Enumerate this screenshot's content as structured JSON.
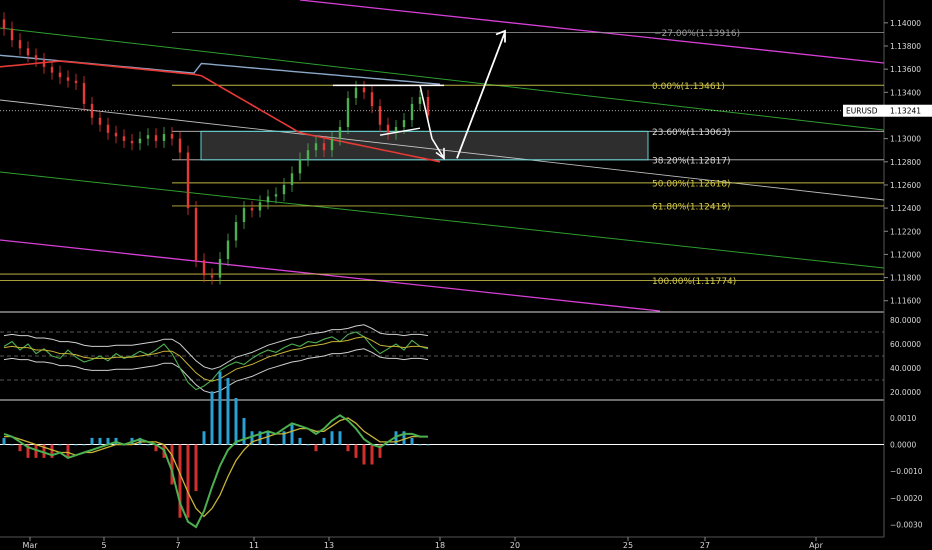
{
  "chart_data": {
    "type": "candlestick",
    "symbol": "EURUSD",
    "current_price": "1.13241",
    "x_ticks": [
      "Mar",
      "5",
      "7",
      "11",
      "13",
      "18",
      "20",
      "25",
      "27",
      "Apr"
    ],
    "price_axis": {
      "ticks": [
        "1.14000",
        "1.13800",
        "1.13600",
        "1.13400",
        "1.13000",
        "1.12800",
        "1.12600",
        "1.12400",
        "1.12200",
        "1.12000",
        "1.11800",
        "1.11600"
      ],
      "ylim": [
        1.1152,
        1.1418
      ]
    },
    "fibonacci": [
      {
        "label": "−27.00%(1.13916)",
        "level": 1.13916,
        "color": "#9a9a9a"
      },
      {
        "label": "0.00%(1.13461)",
        "level": 1.13461,
        "color": "#d4c94a"
      },
      {
        "label": "23.60%(1.13063)",
        "level": 1.13063,
        "color": "#d8d8d8"
      },
      {
        "label": "38.20%(1.12817)",
        "level": 1.12817,
        "color": "#d8d8d8"
      },
      {
        "label": "50.00%(1.12618)",
        "level": 1.12618,
        "color": "#d4c94a"
      },
      {
        "label": "61.80%(1.12419)",
        "level": 1.12419,
        "color": "#d4c94a"
      },
      {
        "label": "100.00%(1.11774)",
        "level": 1.11774,
        "color": "#d4c94a"
      }
    ],
    "candles_close": [
      1.1395,
      1.1385,
      1.1378,
      1.1372,
      1.1368,
      1.1362,
      1.1357,
      1.1353,
      1.135,
      1.1348,
      1.133,
      1.1318,
      1.1312,
      1.1305,
      1.1302,
      1.1298,
      1.1296,
      1.13,
      1.1303,
      1.1298,
      1.1304,
      1.13,
      1.1288,
      1.124,
      1.1195,
      1.1182,
      1.118,
      1.1196,
      1.1212,
      1.1228,
      1.124,
      1.1238,
      1.1245,
      1.125,
      1.1252,
      1.126,
      1.127,
      1.1282,
      1.129,
      1.1296,
      1.129,
      1.13,
      1.131,
      1.1335,
      1.1344,
      1.134,
      1.1328,
      1.1312,
      1.1305,
      1.131,
      1.1316,
      1.133,
      1.1336,
      1.132
    ],
    "rsi_panel": {
      "ticks": [
        "80.0000",
        "60.0000",
        "40.0000",
        "20.0000"
      ],
      "ylim": [
        15,
        85
      ],
      "rsi": [
        58,
        62,
        55,
        60,
        52,
        56,
        50,
        48,
        55,
        49,
        45,
        47,
        50,
        46,
        52,
        48,
        50,
        54,
        51,
        55,
        60,
        52,
        40,
        28,
        22,
        25,
        30,
        38,
        42,
        45,
        43,
        48,
        52,
        55,
        53,
        57,
        60,
        58,
        62,
        61,
        64,
        66,
        62,
        68,
        70,
        66,
        58,
        52,
        56,
        60,
        55,
        63,
        58,
        56
      ],
      "signal": [
        57,
        58,
        57,
        57,
        55,
        55,
        54,
        52,
        52,
        51,
        49,
        48,
        48,
        48,
        49,
        49,
        49,
        50,
        51,
        52,
        54,
        54,
        50,
        43,
        36,
        31,
        29,
        31,
        35,
        39,
        41,
        43,
        46,
        49,
        51,
        53,
        55,
        56,
        58,
        59,
        60,
        62,
        62,
        63,
        65,
        66,
        63,
        59,
        58,
        58,
        57,
        58,
        58,
        57
      ],
      "dashed_levels": [
        70,
        50,
        30
      ]
    },
    "macd_panel": {
      "ticks": [
        "0.0010",
        "0.0000",
        "−0.0010",
        "−0.0020",
        "−0.0030"
      ],
      "ylim": [
        -0.0034,
        0.0016
      ],
      "macd": [
        0.0004,
        0.0003,
        0.0001,
        -0.0001,
        -0.0002,
        -0.0003,
        -0.0004,
        -0.0003,
        -0.0005,
        -0.0004,
        -0.0003,
        -0.0002,
        -0.0001,
        0.0,
        0.0001,
        0.0,
        0.0001,
        0.0002,
        0.0001,
        0.0,
        -0.0002,
        -0.001,
        -0.0022,
        -0.0029,
        -0.0031,
        -0.0025,
        -0.0016,
        -0.0008,
        -0.0002,
        0.0001,
        0.0002,
        0.0003,
        0.0004,
        0.0005,
        0.0004,
        0.0006,
        0.0008,
        0.0007,
        0.0006,
        0.0004,
        0.0006,
        0.0009,
        0.0011,
        0.0009,
        0.0006,
        0.0002,
        0.0,
        -0.0001,
        0.0001,
        0.0003,
        0.0004,
        0.0004,
        0.0003,
        0.0003
      ],
      "signal": [
        0.0003,
        0.0003,
        0.0002,
        0.0001,
        0.0,
        -0.0001,
        -0.0002,
        -0.0003,
        -0.0003,
        -0.0004,
        -0.0003,
        -0.0003,
        -0.0002,
        -0.0001,
        0.0,
        0.0,
        0.0,
        0.0001,
        0.0001,
        0.0001,
        0.0,
        -0.0004,
        -0.0011,
        -0.0018,
        -0.0024,
        -0.0027,
        -0.0024,
        -0.0019,
        -0.0012,
        -0.0006,
        -0.0002,
        0.0001,
        0.0002,
        0.0003,
        0.0004,
        0.0004,
        0.0005,
        0.0006,
        0.0006,
        0.0005,
        0.0005,
        0.0007,
        0.0009,
        0.001,
        0.0008,
        0.0005,
        0.0003,
        0.0001,
        0.0001,
        0.0001,
        0.0002,
        0.0003,
        0.0003,
        0.0003
      ]
    },
    "colors": {
      "up": "#4caf50",
      "down": "#e53935",
      "ma_red": "#e53935",
      "ma_blue": "#8aa7c8",
      "fib_yellow": "#d4c94a",
      "channel_magenta": "#d63fd6",
      "channel_green": "#2e9e2e",
      "box": "#5fd3d3",
      "arrow": "#ffffff",
      "signal_yellow": "#c8b436"
    }
  }
}
